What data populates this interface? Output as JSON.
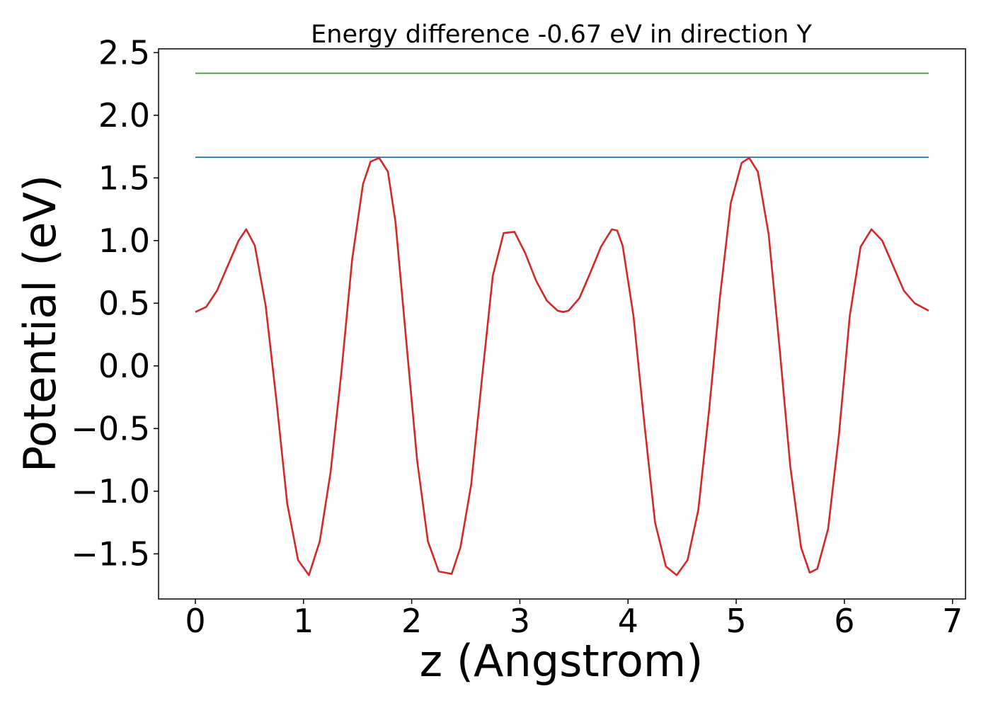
{
  "chart_data": {
    "type": "line",
    "title": "Energy difference -0.67 eV in direction Y",
    "xlabel": "z (Angstrom)",
    "ylabel": "Potential (eV)",
    "xlim": [
      -0.34,
      7.12
    ],
    "ylim": [
      -1.86,
      2.53
    ],
    "x_ticks": [
      0,
      1,
      2,
      3,
      4,
      5,
      6,
      7
    ],
    "x_tick_labels": [
      "0",
      "1",
      "2",
      "3",
      "4",
      "5",
      "6",
      "7"
    ],
    "y_ticks": [
      -1.5,
      -1.0,
      -0.5,
      0.0,
      0.5,
      1.0,
      1.5,
      2.0,
      2.5
    ],
    "y_tick_labels": [
      "−1.5",
      "−1.0",
      "−0.5",
      "0.0",
      "0.5",
      "1.0",
      "1.5",
      "2.0",
      "2.5"
    ],
    "grid": false,
    "legend": "none",
    "series": [
      {
        "color": "#1f77b4",
        "style": "horizontal",
        "x": [
          0,
          6.78
        ],
        "y": [
          1.665,
          1.665
        ]
      },
      {
        "color": "#2ca02c",
        "style": "horizontal",
        "x": [
          0,
          6.78
        ],
        "y": [
          2.335,
          2.335
        ]
      },
      {
        "color": "#d62728",
        "style": "curve",
        "x": [
          0.0,
          0.1,
          0.2,
          0.3,
          0.4,
          0.47,
          0.55,
          0.65,
          0.75,
          0.85,
          0.95,
          1.05,
          1.15,
          1.25,
          1.35,
          1.45,
          1.55,
          1.62,
          1.7,
          1.78,
          1.85,
          1.95,
          2.05,
          2.15,
          2.25,
          2.37,
          2.45,
          2.55,
          2.65,
          2.75,
          2.85,
          2.95,
          3.05,
          3.15,
          3.25,
          3.35,
          3.4,
          3.45,
          3.55,
          3.65,
          3.75,
          3.85,
          3.9,
          3.95,
          4.05,
          4.15,
          4.25,
          4.35,
          4.45,
          4.55,
          4.65,
          4.75,
          4.85,
          4.95,
          5.05,
          5.12,
          5.2,
          5.3,
          5.4,
          5.5,
          5.6,
          5.68,
          5.75,
          5.85,
          5.95,
          6.05,
          6.15,
          6.25,
          6.35,
          6.45,
          6.55,
          6.65,
          6.78
        ],
        "y": [
          0.43,
          0.47,
          0.6,
          0.8,
          1.0,
          1.09,
          0.96,
          0.48,
          -0.28,
          -1.1,
          -1.55,
          -1.67,
          -1.4,
          -0.85,
          -0.05,
          0.85,
          1.45,
          1.63,
          1.66,
          1.55,
          1.15,
          0.2,
          -0.75,
          -1.4,
          -1.64,
          -1.66,
          -1.45,
          -0.95,
          -0.1,
          0.72,
          1.06,
          1.07,
          0.9,
          0.68,
          0.52,
          0.44,
          0.43,
          0.44,
          0.54,
          0.74,
          0.95,
          1.09,
          1.08,
          0.96,
          0.4,
          -0.45,
          -1.25,
          -1.6,
          -1.67,
          -1.55,
          -1.15,
          -0.35,
          0.55,
          1.3,
          1.62,
          1.66,
          1.55,
          1.05,
          0.15,
          -0.8,
          -1.45,
          -1.65,
          -1.62,
          -1.3,
          -0.55,
          0.4,
          0.95,
          1.09,
          1.0,
          0.8,
          0.6,
          0.5,
          0.44
        ]
      }
    ]
  }
}
